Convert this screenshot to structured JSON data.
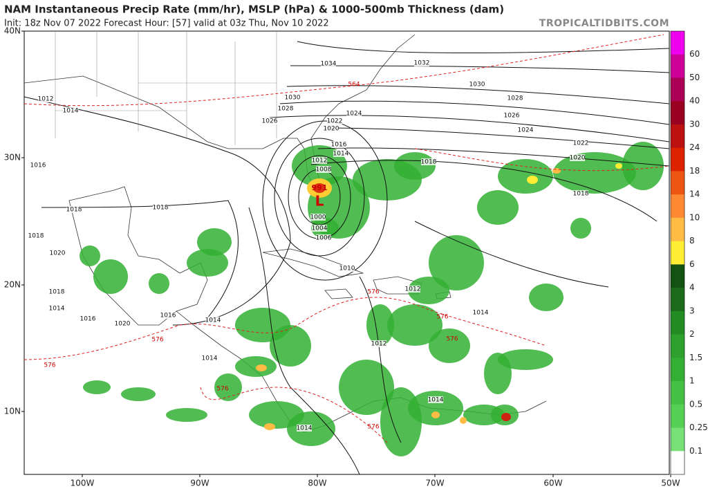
{
  "header": {
    "title": "NAM Instantaneous Precip Rate (mm/hr), MSLP (hPa) & 1000-500mb Thickness (dam)",
    "subtitle": "Init: 18z Nov 07 2022   Forecast Hour: [57]   valid at 03z Thu, Nov 10 2022",
    "watermark": "TROPICALTIDBITS.COM"
  },
  "axes": {
    "lat_labels": [
      "40N",
      "30N",
      "20N",
      "10N"
    ],
    "lon_labels": [
      "100W",
      "90W",
      "80W",
      "70W",
      "60W",
      "50W"
    ]
  },
  "colorbar": {
    "labels": [
      "60",
      "50",
      "40",
      "30",
      "24",
      "18",
      "14",
      "10",
      "8",
      "6",
      "4",
      "3",
      "2",
      "1.5",
      "1",
      "0.5",
      "0.25",
      "0.1"
    ]
  },
  "map": {
    "isobar_labels": [
      "1034",
      "1032",
      "1030",
      "1028",
      "1026",
      "1024",
      "1022",
      "1020",
      "1018",
      "1018",
      "1016",
      "1014",
      "1012",
      "1008",
      "1000",
      "1004",
      "1006",
      "1010",
      "1012",
      "1014",
      "1012",
      "1014",
      "1030",
      "1028",
      "1026",
      "1024",
      "1022",
      "1020",
      "1012",
      "1014",
      "1016",
      "1018",
      "1018",
      "1018",
      "1020",
      "1018",
      "1014",
      "1016",
      "1020",
      "1016",
      "1014",
      "1014",
      "1014"
    ],
    "thickness_labels": [
      "564",
      "576",
      "576",
      "576",
      "576",
      "576",
      "576",
      "576"
    ],
    "low": {
      "symbol": "L",
      "pressure": "991"
    }
  }
}
